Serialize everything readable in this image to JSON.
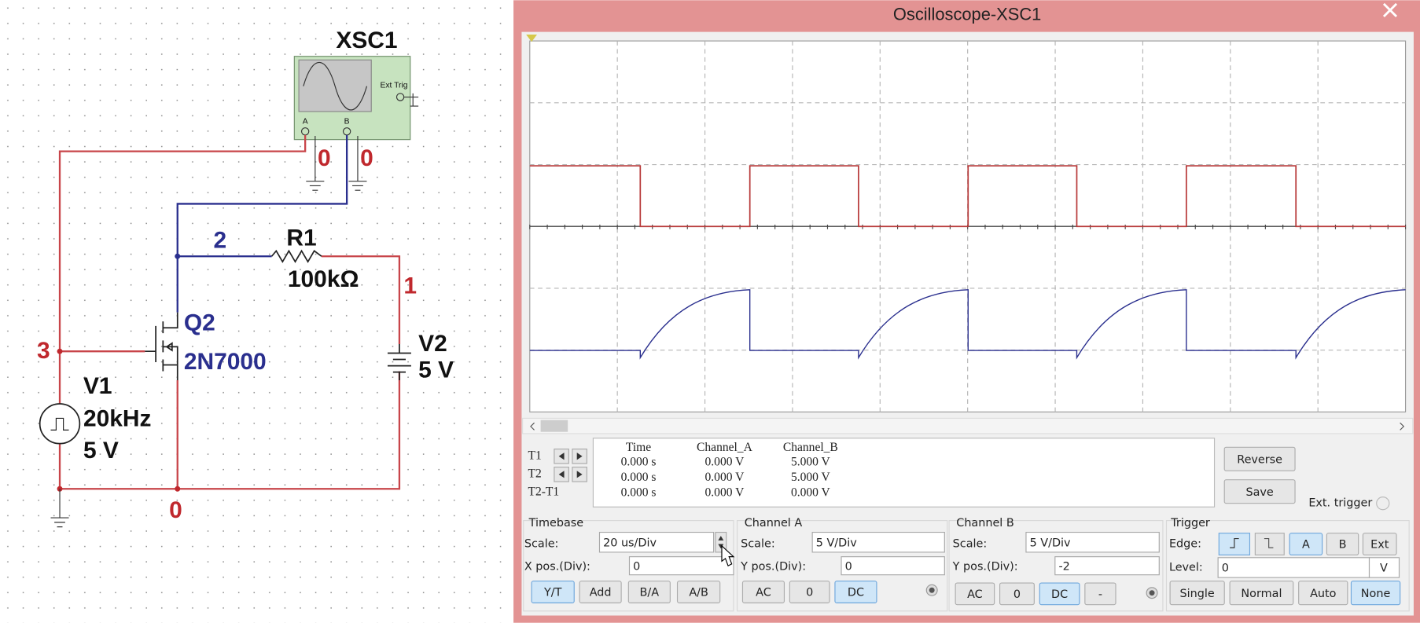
{
  "schematic": {
    "instrument": "XSC1",
    "terminal_a": "A",
    "terminal_b": "B",
    "ext_trig": "Ext Trig",
    "ground_a": "0",
    "ground_b": "0",
    "node_2": "2",
    "node_1": "1",
    "node_3": "3",
    "node_0": "0",
    "r1": {
      "name": "R1",
      "value": "100kΩ"
    },
    "q2": {
      "name": "Q2",
      "model": "2N7000"
    },
    "v2": {
      "name": "V2",
      "value": "5 V"
    },
    "v1": {
      "name": "V1",
      "frequency": "20kHz",
      "amplitude": "5 V"
    }
  },
  "window": {
    "title": "Oscilloscope-XSC1"
  },
  "readout": {
    "headers": [
      "Time",
      "Channel_A",
      "Channel_B"
    ],
    "rows": [
      {
        "label": "T1",
        "values": [
          "0.000 s",
          "0.000 V",
          "5.000 V"
        ]
      },
      {
        "label": "T2",
        "values": [
          "0.000 s",
          "0.000 V",
          "5.000 V"
        ]
      },
      {
        "label": "T2-T1",
        "values": [
          "0.000 s",
          "0.000 V",
          "0.000 V"
        ]
      }
    ]
  },
  "actions": {
    "reverse": "Reverse",
    "save": "Save",
    "ext_trigger": "Ext. trigger"
  },
  "timebase": {
    "title": "Timebase",
    "scale_label": "Scale:",
    "scale": "20 us/Div",
    "xpos_label": "X pos.(Div):",
    "xpos": "0",
    "modes": [
      "Y/T",
      "Add",
      "B/A",
      "A/B"
    ]
  },
  "channel_a": {
    "title": "Channel A",
    "scale_label": "Scale:",
    "scale": "5  V/Div",
    "ypos_label": "Y pos.(Div):",
    "ypos": "0",
    "coupling": [
      "AC",
      "0",
      "DC"
    ]
  },
  "channel_b": {
    "title": "Channel B",
    "scale_label": "Scale:",
    "scale": "5  V/Div",
    "ypos_label": "Y pos.(Div):",
    "ypos": "-2",
    "coupling": [
      "AC",
      "0",
      "DC",
      "-"
    ]
  },
  "trigger": {
    "title": "Trigger",
    "edge_label": "Edge:",
    "sources": [
      "A",
      "B",
      "Ext"
    ],
    "level_label": "Level:",
    "level": "0",
    "level_unit": "V",
    "modes": [
      "Single",
      "Normal",
      "Auto",
      "None"
    ]
  }
}
